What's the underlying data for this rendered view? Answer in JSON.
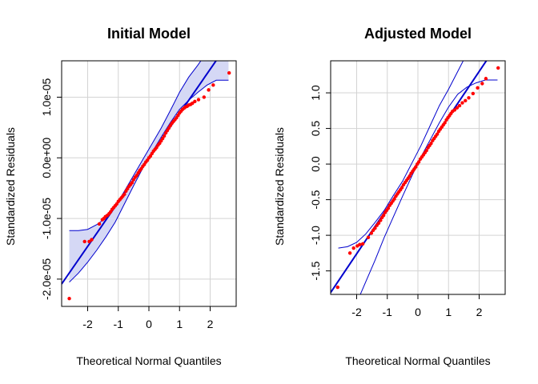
{
  "chart_data": [
    {
      "type": "scatter",
      "title": "Initial Model",
      "xlabel": "Theoretical Normal Quantiles",
      "ylabel": "Standardized Residuals",
      "xlim": [
        -2.85,
        2.85
      ],
      "ylim": [
        -2.45e-05,
        1.6e-05
      ],
      "x_ticks": [
        -2,
        -1,
        0,
        1,
        2
      ],
      "x_tick_labels": [
        "-2",
        "-1",
        "0",
        "1",
        "2"
      ],
      "y_ticks": [
        -2e-05,
        -1e-05,
        0,
        1e-05
      ],
      "y_tick_labels": [
        "-2.0e-05",
        "-1.0e-05",
        "0.0e+00",
        "1.0e-05"
      ],
      "grid": true,
      "colors": {
        "points": "#ff0000",
        "line": "#0000cd",
        "band_fill": "#d5d8f5",
        "band_edge": "#0000cd",
        "grid": "#d3d3d3"
      },
      "reference_line": {
        "intercept": 0,
        "slope": 7.3e-06
      },
      "band": {
        "x": [
          -2.6,
          -2.3,
          -2.0,
          -1.7,
          -1.4,
          -1.1,
          -0.8,
          -0.5,
          -0.2,
          0.1,
          0.4,
          0.7,
          1.0,
          1.3,
          1.6,
          1.9,
          2.2,
          2.6
        ],
        "lower": [
          -2.05e-05,
          -1.9e-05,
          -1.72e-05,
          -1.52e-05,
          -1.3e-05,
          -1.06e-05,
          -7.6e-06,
          -4.6e-06,
          -1.7e-06,
          9e-07,
          3.4e-06,
          5.8e-06,
          8e-06,
          9.5e-06,
          1.08e-05,
          1.2e-05,
          1.28e-05,
          1.28e-05
        ],
        "upper": [
          -1.2e-05,
          -1.2e-05,
          -1.18e-05,
          -1.1e-05,
          -9.9e-06,
          -8e-06,
          -5.5e-06,
          -2.9e-06,
          -3e-07,
          2.3e-06,
          4.9e-06,
          7.8e-06,
          1.08e-05,
          1.33e-05,
          1.53e-05,
          1.75e-05,
          1.95e-05,
          2.1e-05
        ]
      },
      "points": {
        "x": [
          -2.6,
          -2.1,
          -1.95,
          -1.87,
          -1.62,
          -1.52,
          -1.47,
          -1.42,
          -1.36,
          -1.3,
          -1.25,
          -1.2,
          -1.15,
          -1.1,
          -1.05,
          -1.0,
          -0.95,
          -0.9,
          -0.85,
          -0.8,
          -0.75,
          -0.7,
          -0.65,
          -0.6,
          -0.55,
          -0.5,
          -0.45,
          -0.4,
          -0.35,
          -0.3,
          -0.25,
          -0.2,
          -0.15,
          -0.1,
          -0.05,
          0.0,
          0.05,
          0.1,
          0.15,
          0.2,
          0.25,
          0.3,
          0.35,
          0.4,
          0.45,
          0.5,
          0.55,
          0.6,
          0.65,
          0.7,
          0.75,
          0.8,
          0.85,
          0.9,
          0.95,
          1.0,
          1.05,
          1.1,
          1.15,
          1.2,
          1.25,
          1.3,
          1.36,
          1.42,
          1.5,
          1.62,
          1.8,
          1.95,
          2.1,
          2.62
        ],
        "y": [
          -2.32e-05,
          -1.38e-05,
          -1.38e-05,
          -1.35e-05,
          -1.09e-05,
          -1.02e-05,
          -1e-05,
          -9.7e-06,
          -9.5e-06,
          -9.2e-06,
          -8.9e-06,
          -8.5e-06,
          -8.2e-06,
          -7.9e-06,
          -7.6e-06,
          -7.2e-06,
          -6.9e-06,
          -6.6e-06,
          -6.3e-06,
          -6e-06,
          -5.5e-06,
          -5.1e-06,
          -4.7e-06,
          -4.4e-06,
          -4.1e-06,
          -3.6e-06,
          -3.2e-06,
          -2.9e-06,
          -2.5e-06,
          -2.1e-06,
          -1.8e-06,
          -1.4e-06,
          -1.1e-06,
          -7e-07,
          -4e-07,
          0.0,
          3e-07,
          7e-07,
          1.1e-06,
          1.4e-06,
          1.7e-06,
          2.1e-06,
          2.4e-06,
          2.8e-06,
          3.2e-06,
          3.6e-06,
          4.1e-06,
          4.5e-06,
          4.9e-06,
          5.3e-06,
          5.7e-06,
          6e-06,
          6.3e-06,
          6.6e-06,
          7e-06,
          7.4e-06,
          7.7e-06,
          8e-06,
          8.2e-06,
          8.4e-06,
          8.5e-06,
          8.7e-06,
          8.8e-06,
          9e-06,
          9.3e-06,
          9.6e-06,
          1e-05,
          1.12e-05,
          1.2e-05,
          1.4e-05
        ]
      }
    },
    {
      "type": "scatter",
      "title": "Adjusted Model",
      "xlabel": "Theoretical Normal Quantiles",
      "ylabel": "Standardized Residuals",
      "xlim": [
        -2.85,
        2.85
      ],
      "ylim": [
        -1.83,
        1.45
      ],
      "x_ticks": [
        -2,
        -1,
        0,
        1,
        2
      ],
      "x_tick_labels": [
        "-2",
        "-1",
        "0",
        "1",
        "2"
      ],
      "y_ticks": [
        -1.5,
        -1.0,
        -0.5,
        0.0,
        0.5,
        1.0
      ],
      "y_tick_labels": [
        "-1.5",
        "-1.0",
        "-0.5",
        "0.0",
        "0.5",
        "1.0"
      ],
      "grid": true,
      "colors": {
        "points": "#ff0000",
        "line": "#0000cd",
        "band_edge": "#0000cd",
        "grid": "#d3d3d3"
      },
      "reference_line": {
        "intercept": 0.02,
        "slope": 0.64
      },
      "band": {
        "x": [
          -2.6,
          -2.3,
          -2.0,
          -1.7,
          -1.4,
          -1.1,
          -0.8,
          -0.5,
          -0.2,
          0.1,
          0.4,
          0.7,
          1.0,
          1.3,
          1.6,
          1.9,
          2.2,
          2.6
        ],
        "lower": [
          -2.6,
          -2.25,
          -1.95,
          -1.65,
          -1.35,
          -1.03,
          -0.74,
          -0.45,
          -0.17,
          0.1,
          0.34,
          0.58,
          0.8,
          0.98,
          1.08,
          1.14,
          1.18,
          1.18
        ],
        "upper": [
          -1.18,
          -1.16,
          -1.1,
          -0.98,
          -0.82,
          -0.65,
          -0.44,
          -0.24,
          0.01,
          0.26,
          0.54,
          0.82,
          1.05,
          1.3,
          1.55,
          1.8,
          2.05,
          2.4
        ]
      },
      "points": {
        "x": [
          -2.62,
          -2.22,
          -2.1,
          -1.98,
          -1.9,
          -1.8,
          -1.62,
          -1.52,
          -1.46,
          -1.4,
          -1.34,
          -1.28,
          -1.22,
          -1.17,
          -1.12,
          -1.07,
          -1.02,
          -0.97,
          -0.92,
          -0.87,
          -0.82,
          -0.77,
          -0.72,
          -0.67,
          -0.62,
          -0.57,
          -0.52,
          -0.47,
          -0.42,
          -0.37,
          -0.32,
          -0.27,
          -0.22,
          -0.17,
          -0.12,
          -0.07,
          -0.02,
          0.03,
          0.08,
          0.13,
          0.18,
          0.23,
          0.28,
          0.33,
          0.38,
          0.43,
          0.48,
          0.53,
          0.58,
          0.63,
          0.68,
          0.73,
          0.78,
          0.83,
          0.88,
          0.93,
          0.98,
          1.03,
          1.08,
          1.13,
          1.2,
          1.28,
          1.36,
          1.45,
          1.55,
          1.66,
          1.8,
          1.95,
          2.1,
          2.22,
          2.62
        ],
        "y": [
          -1.73,
          -1.25,
          -1.18,
          -1.15,
          -1.13,
          -1.12,
          -1.03,
          -0.97,
          -0.93,
          -0.9,
          -0.86,
          -0.83,
          -0.79,
          -0.75,
          -0.72,
          -0.68,
          -0.65,
          -0.62,
          -0.58,
          -0.55,
          -0.52,
          -0.49,
          -0.45,
          -0.42,
          -0.39,
          -0.36,
          -0.33,
          -0.29,
          -0.26,
          -0.23,
          -0.2,
          -0.17,
          -0.13,
          -0.1,
          -0.07,
          -0.04,
          0.0,
          0.03,
          0.07,
          0.1,
          0.13,
          0.16,
          0.19,
          0.23,
          0.26,
          0.29,
          0.33,
          0.36,
          0.39,
          0.42,
          0.46,
          0.49,
          0.52,
          0.55,
          0.58,
          0.62,
          0.65,
          0.68,
          0.71,
          0.74,
          0.76,
          0.79,
          0.82,
          0.86,
          0.89,
          0.93,
          0.99,
          1.07,
          1.13,
          1.2,
          1.35
        ]
      }
    }
  ]
}
